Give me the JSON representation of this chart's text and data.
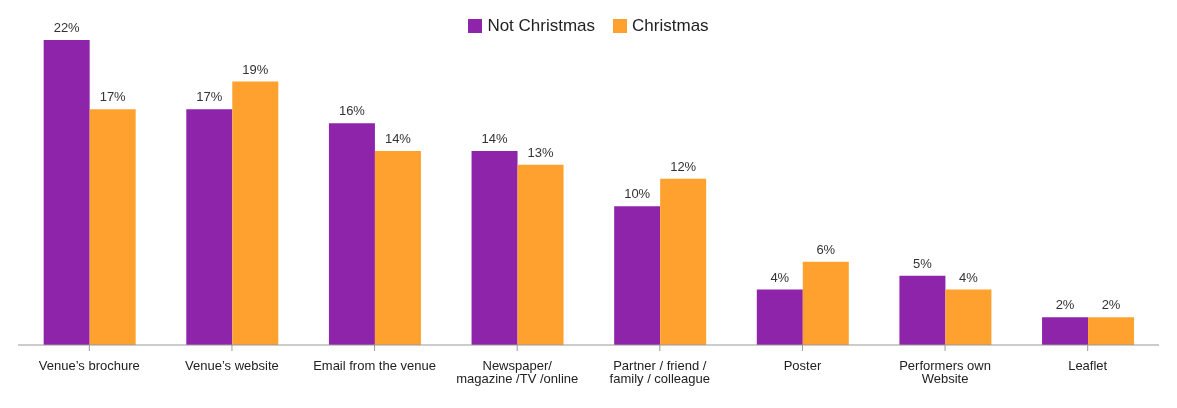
{
  "chart_data": {
    "type": "bar",
    "categories": [
      "Venue’s brochure",
      "Venue’s website",
      "Email from the venue",
      "Newspaper/ magazine /TV /online",
      "Partner / friend / family / colleague",
      "Poster",
      "Performers own Website",
      "Leaflet"
    ],
    "series": [
      {
        "name": "Not Christmas",
        "color": "#8e24aa",
        "values": [
          22,
          17,
          16,
          14,
          10,
          4,
          5,
          2
        ],
        "value_labels": [
          "22%",
          "17%",
          "16%",
          "14%",
          "10%",
          "4%",
          "5%",
          "2%"
        ]
      },
      {
        "name": "Christmas",
        "color": "#ffa12e",
        "values": [
          17,
          19,
          14,
          13,
          12,
          6,
          4,
          2
        ],
        "value_labels": [
          "17%",
          "19%",
          "14%",
          "13%",
          "12%",
          "6%",
          "4%",
          "2%"
        ]
      }
    ],
    "grid": false,
    "legend": "top"
  }
}
